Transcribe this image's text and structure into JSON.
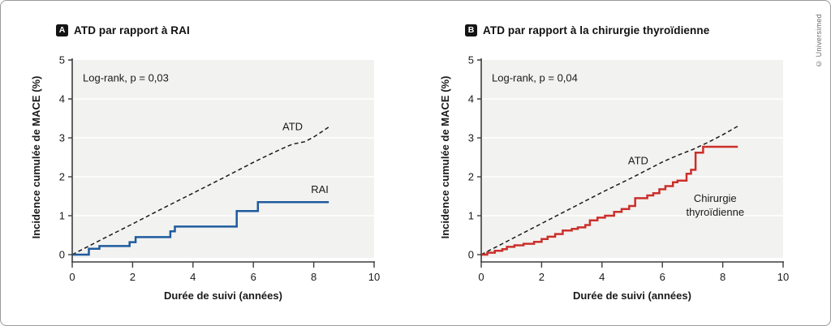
{
  "copyright": "© Universimed",
  "colors": {
    "blue": "#1f5b9e",
    "red": "#cc2f2a",
    "dashed_line": "#1a1a1a",
    "plot_bg": "#f2f2f0",
    "grid": "#ffffff",
    "axis": "#3d3d3d",
    "text": "#1a1a1a",
    "badge_bg": "#141414",
    "badge_text": "#ffffff",
    "frame_border": "#9a9a9a",
    "copyright_color": "#6e6e6e"
  },
  "chart_data": [
    {
      "type": "line",
      "badge": "A",
      "title": "ATD par rapport à RAI",
      "stat_label": "Log-rank, p = 0,03",
      "xlabel": "Durée de suivi (années)",
      "ylabel": "Incidence cumulée de MACE (%)",
      "xlim": [
        0,
        10
      ],
      "ylim": [
        0,
        5
      ],
      "xticks": [
        "0",
        "2",
        "4",
        "6",
        "8",
        "10"
      ],
      "yticks": [
        "0",
        "1",
        "2",
        "3",
        "4",
        "5"
      ],
      "grid": "horizontal-white",
      "legend_position": "inline-labels",
      "series": [
        {
          "name": "ATD",
          "line": "dashed",
          "color": "#1a1a1a",
          "step": false,
          "points": [
            [
              0,
              0
            ],
            [
              1,
              0.4
            ],
            [
              2,
              0.79
            ],
            [
              3,
              1.19
            ],
            [
              4,
              1.58
            ],
            [
              5,
              1.97
            ],
            [
              5.5,
              2.17
            ],
            [
              6,
              2.37
            ],
            [
              6.5,
              2.56
            ],
            [
              7,
              2.74
            ],
            [
              7.3,
              2.84
            ],
            [
              7.7,
              2.9
            ],
            [
              8,
              3.02
            ],
            [
              8.5,
              3.28
            ]
          ]
        },
        {
          "name": "RAI",
          "line": "solid",
          "color": "#1f5b9e",
          "step": true,
          "points": [
            [
              0,
              0
            ],
            [
              0.55,
              0.15
            ],
            [
              0.9,
              0.22
            ],
            [
              1.9,
              0.32
            ],
            [
              2.1,
              0.45
            ],
            [
              3.25,
              0.6
            ],
            [
              3.4,
              0.72
            ],
            [
              5.45,
              1.12
            ],
            [
              6.15,
              1.35
            ],
            [
              8.5,
              1.35
            ]
          ]
        }
      ],
      "annotations": [
        {
          "lines": [
            "ATD"
          ],
          "x": 7.3,
          "y": 3.2
        },
        {
          "lines": [
            "RAI"
          ],
          "x": 8.2,
          "y": 1.58
        }
      ]
    },
    {
      "type": "line",
      "badge": "B",
      "title": "ATD par rapport à la chirurgie thyroïdienne",
      "stat_label": "Log-rank, p = 0,04",
      "xlabel": "Durée de suivi (années)",
      "ylabel": "Incidence cumulée de MACE (%)",
      "xlim": [
        0,
        10
      ],
      "ylim": [
        0,
        5
      ],
      "xticks": [
        "0",
        "2",
        "4",
        "6",
        "8",
        "10"
      ],
      "yticks": [
        "0",
        "1",
        "2",
        "3",
        "4",
        "5"
      ],
      "grid": "horizontal-white",
      "legend_position": "inline-labels",
      "series": [
        {
          "name": "ATD",
          "line": "dashed",
          "color": "#1a1a1a",
          "step": false,
          "points": [
            [
              0,
              0
            ],
            [
              1,
              0.4
            ],
            [
              2,
              0.8
            ],
            [
              3,
              1.2
            ],
            [
              4,
              1.6
            ],
            [
              5,
              1.98
            ],
            [
              5.5,
              2.18
            ],
            [
              6,
              2.38
            ],
            [
              6.5,
              2.55
            ],
            [
              7,
              2.7
            ],
            [
              7.5,
              2.88
            ],
            [
              8,
              3.08
            ],
            [
              8.5,
              3.3
            ]
          ]
        },
        {
          "name": "Chirurgie thyroïdienne",
          "line": "solid",
          "color": "#cc2f2a",
          "step": true,
          "points": [
            [
              0,
              0
            ],
            [
              0.2,
              0.05
            ],
            [
              0.45,
              0.1
            ],
            [
              0.7,
              0.14
            ],
            [
              0.85,
              0.2
            ],
            [
              1.1,
              0.24
            ],
            [
              1.4,
              0.28
            ],
            [
              1.75,
              0.33
            ],
            [
              2,
              0.4
            ],
            [
              2.2,
              0.46
            ],
            [
              2.45,
              0.53
            ],
            [
              2.7,
              0.62
            ],
            [
              3,
              0.66
            ],
            [
              3.2,
              0.7
            ],
            [
              3.45,
              0.76
            ],
            [
              3.6,
              0.88
            ],
            [
              3.85,
              0.95
            ],
            [
              4.1,
              1.0
            ],
            [
              4.4,
              1.1
            ],
            [
              4.65,
              1.17
            ],
            [
              4.9,
              1.25
            ],
            [
              5.1,
              1.45
            ],
            [
              5.5,
              1.52
            ],
            [
              5.7,
              1.58
            ],
            [
              5.9,
              1.68
            ],
            [
              6.1,
              1.76
            ],
            [
              6.35,
              1.86
            ],
            [
              6.5,
              1.9
            ],
            [
              6.8,
              2.08
            ],
            [
              6.95,
              2.18
            ],
            [
              7.1,
              2.62
            ],
            [
              7.35,
              2.77
            ],
            [
              8.5,
              2.77
            ]
          ]
        }
      ],
      "annotations": [
        {
          "lines": [
            "ATD"
          ],
          "x": 5.2,
          "y": 2.32
        },
        {
          "lines": [
            "Chirurgie",
            "thyroïdienne"
          ],
          "x": 7.75,
          "y": 1.35
        }
      ]
    }
  ]
}
